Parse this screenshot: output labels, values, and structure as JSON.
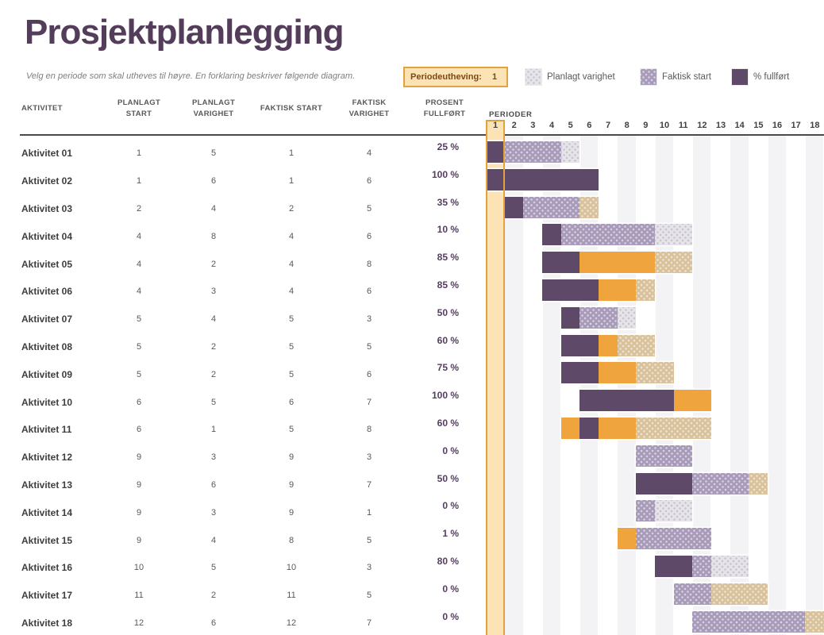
{
  "page": {
    "title": "Prosjektplanlegging",
    "subtitle": "Velg en periode som skal utheves til høyre.  En forklaring beskriver følgende diagram."
  },
  "period_highlight": {
    "label": "Periodeutheving:",
    "value": "1"
  },
  "legend": {
    "items": [
      {
        "label": "Planlagt varighet",
        "swatch": "plan-dotted-gray"
      },
      {
        "label": "Faktisk start",
        "swatch": "light-purple"
      },
      {
        "label": "% fullført",
        "swatch": "dark-purple"
      }
    ]
  },
  "table": {
    "columns": [
      {
        "label": "AKTIVITET"
      },
      {
        "label": "PLANLAGT\nSTART"
      },
      {
        "label": "PLANLAGT\nVARIGHET"
      },
      {
        "label": "FAKTISK START"
      },
      {
        "label": "FAKTISK\nVARIGHET"
      },
      {
        "label": "PROSENT\nFULLFØRT"
      }
    ]
  },
  "gantt": {
    "axis_label": "PERIODER",
    "periods": 18,
    "highlighted_period": 1
  },
  "chart_data": {
    "type": "bar",
    "subtype": "gantt",
    "title": "Prosjektplanlegging",
    "x_axis": {
      "label": "PERIODER",
      "min": 1,
      "max": 18
    },
    "legend": [
      "Planlagt varighet",
      "Faktisk start",
      "% fullført"
    ],
    "activities": [
      {
        "name": "Aktivitet 01",
        "plan_start": 1,
        "plan_dur": 5,
        "actual_start": 1,
        "actual_dur": 4,
        "pct": 25,
        "pct_label": "25 %"
      },
      {
        "name": "Aktivitet 02",
        "plan_start": 1,
        "plan_dur": 6,
        "actual_start": 1,
        "actual_dur": 6,
        "pct": 100,
        "pct_label": "100 %"
      },
      {
        "name": "Aktivitet 03",
        "plan_start": 2,
        "plan_dur": 4,
        "actual_start": 2,
        "actual_dur": 5,
        "pct": 35,
        "pct_label": "35 %"
      },
      {
        "name": "Aktivitet 04",
        "plan_start": 4,
        "plan_dur": 8,
        "actual_start": 4,
        "actual_dur": 6,
        "pct": 10,
        "pct_label": "10 %"
      },
      {
        "name": "Aktivitet 05",
        "plan_start": 4,
        "plan_dur": 2,
        "actual_start": 4,
        "actual_dur": 8,
        "pct": 85,
        "pct_label": "85 %"
      },
      {
        "name": "Aktivitet 06",
        "plan_start": 4,
        "plan_dur": 3,
        "actual_start": 4,
        "actual_dur": 6,
        "pct": 85,
        "pct_label": "85 %"
      },
      {
        "name": "Aktivitet 07",
        "plan_start": 5,
        "plan_dur": 4,
        "actual_start": 5,
        "actual_dur": 3,
        "pct": 50,
        "pct_label": "50 %"
      },
      {
        "name": "Aktivitet 08",
        "plan_start": 5,
        "plan_dur": 2,
        "actual_start": 5,
        "actual_dur": 5,
        "pct": 60,
        "pct_label": "60 %"
      },
      {
        "name": "Aktivitet 09",
        "plan_start": 5,
        "plan_dur": 2,
        "actual_start": 5,
        "actual_dur": 6,
        "pct": 75,
        "pct_label": "75 %"
      },
      {
        "name": "Aktivitet 10",
        "plan_start": 6,
        "plan_dur": 5,
        "actual_start": 6,
        "actual_dur": 7,
        "pct": 100,
        "pct_label": "100 %"
      },
      {
        "name": "Aktivitet 11",
        "plan_start": 6,
        "plan_dur": 1,
        "actual_start": 5,
        "actual_dur": 8,
        "pct": 60,
        "pct_label": "60 %"
      },
      {
        "name": "Aktivitet 12",
        "plan_start": 9,
        "plan_dur": 3,
        "actual_start": 9,
        "actual_dur": 3,
        "pct": 0,
        "pct_label": "0 %"
      },
      {
        "name": "Aktivitet 13",
        "plan_start": 9,
        "plan_dur": 6,
        "actual_start": 9,
        "actual_dur": 7,
        "pct": 50,
        "pct_label": "50 %"
      },
      {
        "name": "Aktivitet 14",
        "plan_start": 9,
        "plan_dur": 3,
        "actual_start": 9,
        "actual_dur": 1,
        "pct": 0,
        "pct_label": "0 %"
      },
      {
        "name": "Aktivitet 15",
        "plan_start": 9,
        "plan_dur": 4,
        "actual_start": 8,
        "actual_dur": 5,
        "pct": 1,
        "pct_label": "1 %"
      },
      {
        "name": "Aktivitet 16",
        "plan_start": 10,
        "plan_dur": 5,
        "actual_start": 10,
        "actual_dur": 3,
        "pct": 80,
        "pct_label": "80 %"
      },
      {
        "name": "Aktivitet 17",
        "plan_start": 11,
        "plan_dur": 2,
        "actual_start": 11,
        "actual_dur": 5,
        "pct": 0,
        "pct_label": "0 %"
      },
      {
        "name": "Aktivitet 18",
        "plan_start": 12,
        "plan_dur": 6,
        "actual_start": 12,
        "actual_dur": 7,
        "pct": 0,
        "pct_label": "0 %"
      }
    ]
  },
  "colors": {
    "title": "#533d5b",
    "dark_purple": "#5e4a68",
    "light_purple": "#a89ab9",
    "plan_gray": "#e6e4e9",
    "gold": "#efa43e",
    "tan": "#d9c29b",
    "highlight_fill": "#fbe3b5",
    "highlight_border": "#e2a33c",
    "stripe": "#f3f2f5"
  }
}
